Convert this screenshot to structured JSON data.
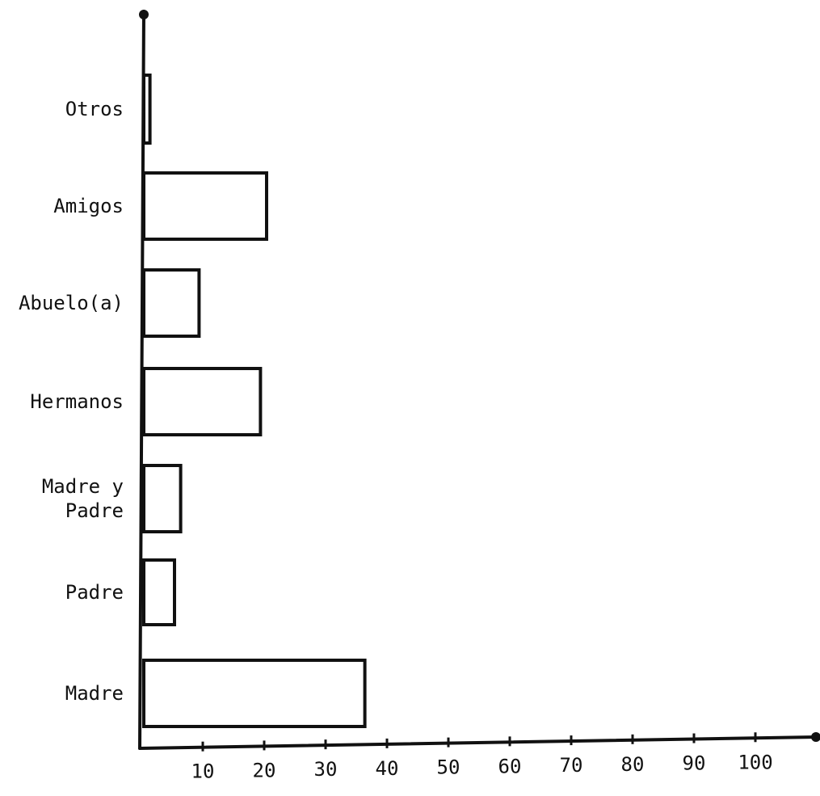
{
  "chart_data": {
    "type": "bar",
    "orientation": "horizontal",
    "title": "",
    "xlabel": "",
    "ylabel": "",
    "categories": [
      "Otros",
      "Amigos",
      "Abuelo(a)",
      "Hermanos",
      "Madre y Padre",
      "Padre",
      "Madre"
    ],
    "category_label_lines": [
      [
        "Otros"
      ],
      [
        "Amigos"
      ],
      [
        "Abuelo(a)"
      ],
      [
        "Hermanos"
      ],
      [
        "Madre y",
        "Padre"
      ],
      [
        "Padre"
      ],
      [
        "Madre"
      ]
    ],
    "values": [
      1,
      20,
      9,
      19,
      6,
      5,
      36
    ],
    "xlim": [
      0,
      108
    ],
    "x_ticks": [
      10,
      20,
      30,
      40,
      50,
      60,
      70,
      80,
      90,
      100
    ],
    "x_tick_labels": [
      "10",
      "20",
      "30",
      "40",
      "50",
      "60",
      "70",
      "80",
      "90",
      "100"
    ],
    "grid": false,
    "legend": "none",
    "bar_fill": "#ffffff",
    "bar_stroke": "#111111",
    "axis_color": "#111111"
  }
}
